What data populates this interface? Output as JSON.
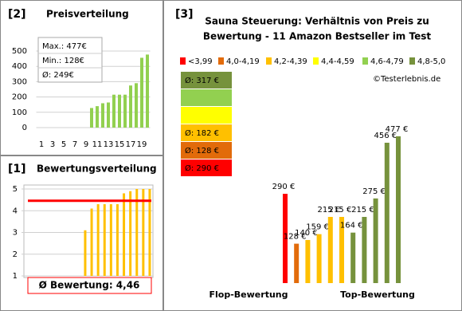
{
  "chart_data": [
    {
      "type": "bar",
      "panel_label": "[2]",
      "title": "Preisverteilung",
      "categories": [
        "1",
        null,
        "3",
        null,
        "5",
        null,
        "7",
        null,
        "9",
        null,
        "11",
        null,
        "13",
        null,
        "15",
        null,
        "17",
        null,
        "19",
        null
      ],
      "values": [
        null,
        null,
        null,
        null,
        null,
        null,
        null,
        null,
        null,
        128,
        140,
        159,
        164,
        215,
        215,
        215,
        275,
        290,
        456,
        477
      ],
      "color": "#92d050",
      "ylim": [
        0,
        500
      ],
      "yticks": [
        0,
        100,
        200,
        300,
        400,
        500
      ],
      "grid": true,
      "annotations": [
        "Max.: 477€",
        "Min.: 128€",
        "Ø: 249€"
      ]
    },
    {
      "type": "bar",
      "panel_label": "[1]",
      "title": "Bewertungsverteilung",
      "values": [
        null,
        null,
        null,
        null,
        null,
        null,
        null,
        null,
        null,
        3.1,
        4.1,
        4.3,
        4.3,
        4.3,
        4.3,
        4.8,
        4.9,
        5.0,
        5.0,
        5.0
      ],
      "color": "#ffc000",
      "ylim": [
        1,
        5
      ],
      "yticks": [
        1,
        2,
        3,
        4,
        5
      ],
      "grid": true,
      "mean": 4.46,
      "mean_label": "Ø Bewertung: 4,46",
      "mean_color": "#ff0000"
    },
    {
      "type": "bar",
      "panel_label": "[3]",
      "title": [
        "Sauna Steuerung: Verhältnis von Preis zu",
        "Bewertung - 11 Amazon Bestseller im Test"
      ],
      "values": [
        290,
        128,
        140,
        159,
        215,
        215,
        164,
        215,
        275,
        456,
        477
      ],
      "value_labels": [
        "290 €",
        "128 €",
        "140 €",
        "159 €",
        "215 €",
        "215 €",
        "164 €",
        "215 €",
        "275 €",
        "456 €",
        "477 €"
      ],
      "colors": [
        "#ff0000",
        "#e26b0a",
        "#ffc000",
        "#ffc000",
        "#ffc000",
        "#ffc000",
        "#76923c",
        "#76923c",
        "#76923c",
        "#76923c",
        "#76923c"
      ],
      "ylim": [
        0,
        500
      ],
      "legend": [
        {
          "name": "<3,99",
          "color": "#ff0000"
        },
        {
          "name": "4,0-4,19",
          "color": "#e26b0a"
        },
        {
          "name": "4,2-4,39",
          "color": "#ffc000"
        },
        {
          "name": "4,4-4,59",
          "color": "#ffff00"
        },
        {
          "name": "4,6-4,79",
          "color": "#92d050"
        },
        {
          "name": "4,8-5,0",
          "color": "#76923c"
        }
      ],
      "group_averages": [
        {
          "color": "#76923c",
          "label": "Ø: 317 €"
        },
        {
          "color": "#92d050"
        },
        {
          "color": "#ffff00"
        },
        {
          "color": "#ffc000",
          "label": "Ø: 182 €"
        },
        {
          "color": "#e26b0a",
          "label": "Ø: 128 €"
        },
        {
          "color": "#ff0000",
          "label": "Ø: 290 €"
        }
      ],
      "credit": "©Testerlebnis.de",
      "x_labels": [
        "Flop-Bewertung",
        "Top-Bewertung"
      ]
    }
  ]
}
